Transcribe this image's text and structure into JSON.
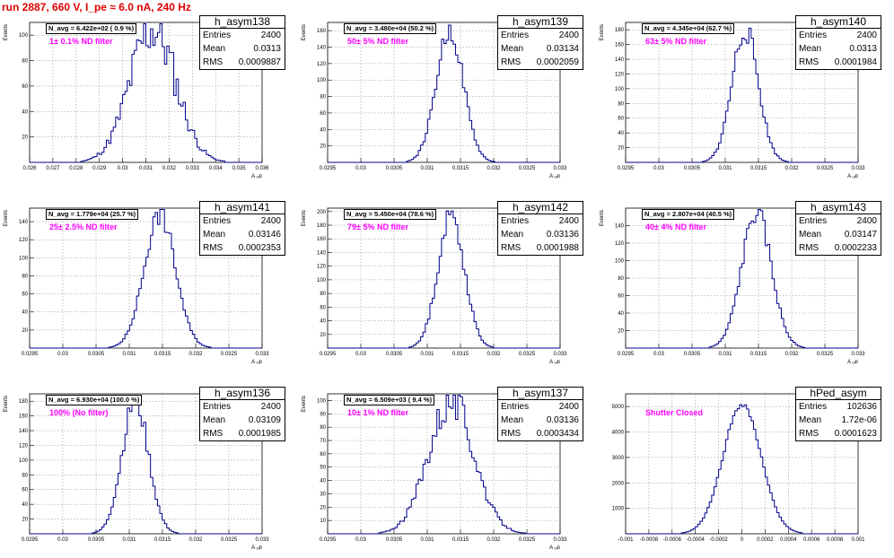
{
  "title": "run 2887,   660 V, I_pe ≈ 6.0 nA, 240 Hz",
  "colors": {
    "histogram": "#00008b",
    "title": "#e00000",
    "annotation": "#ff00ff",
    "grid": "#888888"
  },
  "stats_labels": {
    "entries": "Entries",
    "mean": "Mean",
    "rms": "RMS"
  },
  "chart_data": [
    {
      "type": "histogram",
      "name": "h_asym138",
      "navg": "N_avg = 6.422e+02 ( 0.9 %)",
      "filter": "1± 0.1% ND filter",
      "entries": "2400",
      "mean_text": "0.0313",
      "rms_text": "0.0009887",
      "mean": 0.0313,
      "rms": 0.0009887,
      "peak": 105,
      "xlim": [
        0.026,
        0.036
      ],
      "ylim": [
        0,
        110
      ],
      "xticks": [
        "0.026",
        "0.027",
        "0.028",
        "0.029",
        "0.03",
        "0.031",
        "0.032",
        "0.033",
        "0.034",
        "0.035",
        "0.036"
      ],
      "yticks": [
        "20",
        "40",
        "60",
        "80",
        "100"
      ],
      "ytickvals": [
        20,
        40,
        60,
        80,
        100
      ],
      "xlabel": "A ᵤᵢᴅ",
      "ylabel": "Events",
      "seed": 11,
      "noise": 0.22
    },
    {
      "type": "histogram",
      "name": "h_asym139",
      "navg": "N_avg = 3.480e+04 (50.2 %)",
      "filter": "50± 5% ND filter",
      "entries": "2400",
      "mean_text": "0.03134",
      "rms_text": "0.0002059",
      "mean": 0.03134,
      "rms": 0.0002059,
      "peak": 160,
      "xlim": [
        0.0295,
        0.033
      ],
      "ylim": [
        0,
        170
      ],
      "xticks": [
        "0.0295",
        "0.03",
        "0.0305",
        "0.031",
        "0.0315",
        "0.032",
        "0.0325",
        "0.033"
      ],
      "yticks": [
        "20",
        "40",
        "60",
        "80",
        "100",
        "120",
        "140",
        "160"
      ],
      "ytickvals": [
        20,
        40,
        60,
        80,
        100,
        120,
        140,
        160
      ],
      "xlabel": "A ᵤᵢᴅ",
      "ylabel": "Events",
      "seed": 22,
      "noise": 0.08
    },
    {
      "type": "histogram",
      "name": "h_asym140",
      "navg": "N_avg = 4.345e+04 (62.7 %)",
      "filter": "63± 5% ND filter",
      "entries": "2400",
      "mean_text": "0.0313",
      "rms_text": "0.0001984",
      "mean": 0.0313,
      "rms": 0.0001984,
      "peak": 180,
      "xlim": [
        0.0295,
        0.033
      ],
      "ylim": [
        0,
        190
      ],
      "xticks": [
        "0.0295",
        "0.03",
        "0.0305",
        "0.031",
        "0.0315",
        "0.032",
        "0.0325",
        "0.033"
      ],
      "yticks": [
        "20",
        "40",
        "60",
        "80",
        "100",
        "120",
        "140",
        "160",
        "180"
      ],
      "ytickvals": [
        20,
        40,
        60,
        80,
        100,
        120,
        140,
        160,
        180
      ],
      "xlabel": "A ᵤᵢᴅ",
      "ylabel": "Events",
      "seed": 33,
      "noise": 0.09
    },
    {
      "type": "histogram",
      "name": "h_asym141",
      "navg": "N_avg = 1.779e+04 (25.7 %)",
      "filter": "25± 2.5% ND filter",
      "entries": "2400",
      "mean_text": "0.03146",
      "rms_text": "0.0002353",
      "mean": 0.03146,
      "rms": 0.0002353,
      "peak": 148,
      "xlim": [
        0.0295,
        0.033
      ],
      "ylim": [
        0,
        155
      ],
      "xticks": [
        "0.0295",
        "0.03",
        "0.0305",
        "0.031",
        "0.0315",
        "0.032",
        "0.0325",
        "0.033"
      ],
      "yticks": [
        "20",
        "40",
        "60",
        "80",
        "100",
        "120",
        "140"
      ],
      "ytickvals": [
        20,
        40,
        60,
        80,
        100,
        120,
        140
      ],
      "xlabel": "A ᵤᵢᴅ",
      "ylabel": "Events",
      "seed": 44,
      "noise": 0.08
    },
    {
      "type": "histogram",
      "name": "h_asym142",
      "navg": "N_avg = 5.450e+04 (78.6 %)",
      "filter": "79± 5% ND filter",
      "entries": "2400",
      "mean_text": "0.03136",
      "rms_text": "0.0001988",
      "mean": 0.03136,
      "rms": 0.0001988,
      "peak": 195,
      "xlim": [
        0.0295,
        0.033
      ],
      "ylim": [
        0,
        205
      ],
      "xticks": [
        "0.0295",
        "0.03",
        "0.0305",
        "0.031",
        "0.0315",
        "0.032",
        "0.0325",
        "0.033"
      ],
      "yticks": [
        "20",
        "40",
        "60",
        "80",
        "100",
        "120",
        "140",
        "160",
        "180",
        "200"
      ],
      "ytickvals": [
        20,
        40,
        60,
        80,
        100,
        120,
        140,
        160,
        180,
        200
      ],
      "xlabel": "A ᵤᵢᴅ",
      "ylabel": "Events",
      "seed": 55,
      "noise": 0.08
    },
    {
      "type": "histogram",
      "name": "h_asym143",
      "navg": "N_avg = 2.807e+04 (40.5 %)",
      "filter": "40± 4% ND filter",
      "entries": "2400",
      "mean_text": "0.03147",
      "rms_text": "0.0002233",
      "mean": 0.03147,
      "rms": 0.0002233,
      "peak": 155,
      "xlim": [
        0.0295,
        0.033
      ],
      "ylim": [
        0,
        160
      ],
      "xticks": [
        "0.0295",
        "0.03",
        "0.0305",
        "0.031",
        "0.0315",
        "0.032",
        "0.0325",
        "0.033"
      ],
      "yticks": [
        "20",
        "40",
        "60",
        "80",
        "100",
        "120",
        "140"
      ],
      "ytickvals": [
        20,
        40,
        60,
        80,
        100,
        120,
        140
      ],
      "xlabel": "A ᵤᵢᴅ",
      "ylabel": "Events",
      "seed": 66,
      "noise": 0.08
    },
    {
      "type": "histogram",
      "name": "h_asym136",
      "navg": "N_avg = 6.930e+04 (100.0 %)",
      "filter": "100% (No filter)",
      "entries": "2400",
      "mean_text": "0.03109",
      "rms_text": "0.0001985",
      "mean": 0.03109,
      "rms": 0.0001985,
      "peak": 180,
      "xlim": [
        0.0295,
        0.033
      ],
      "ylim": [
        0,
        190
      ],
      "xticks": [
        "0.0295",
        "0.03",
        "0.0305",
        "0.031",
        "0.0315",
        "0.032",
        "0.0325",
        "0.033"
      ],
      "yticks": [
        "20",
        "40",
        "60",
        "80",
        "100",
        "120",
        "140",
        "160",
        "180"
      ],
      "ytickvals": [
        20,
        40,
        60,
        80,
        100,
        120,
        140,
        160,
        180
      ],
      "xlabel": "A ᵤᵢᴅ",
      "ylabel": "Events",
      "seed": 77,
      "noise": 0.09
    },
    {
      "type": "histogram",
      "name": "h_asym137",
      "navg": "N_avg = 6.509e+03 ( 9.4 %)",
      "filter": "10± 1% ND filter",
      "entries": "2400",
      "mean_text": "0.03136",
      "rms_text": "0.0003434",
      "mean": 0.03136,
      "rms": 0.0003434,
      "peak": 100,
      "xlim": [
        0.0295,
        0.033
      ],
      "ylim": [
        0,
        105
      ],
      "xticks": [
        "0.0295",
        "0.03",
        "0.0305",
        "0.031",
        "0.0315",
        "0.032",
        "0.0325",
        "0.033"
      ],
      "yticks": [
        "10",
        "20",
        "30",
        "40",
        "50",
        "60",
        "70",
        "80",
        "90",
        "100"
      ],
      "ytickvals": [
        10,
        20,
        30,
        40,
        50,
        60,
        70,
        80,
        90,
        100
      ],
      "xlabel": "A ᵤᵢᴅ",
      "ylabel": "Events",
      "seed": 88,
      "noise": 0.15
    },
    {
      "type": "histogram",
      "name": "hPed_asym",
      "navg": "",
      "filter": "Shutter Closed",
      "entries": "102636",
      "mean_text": "1.72e-06",
      "rms_text": "0.0001623",
      "mean": 1.72e-06,
      "rms": 0.0001623,
      "peak": 5100,
      "xlim": [
        -0.001,
        0.001
      ],
      "ylim": [
        0,
        5500
      ],
      "xticks": [
        "-0.001",
        "-0.0008",
        "-0.0006",
        "-0.0004",
        "-0.0002",
        "0",
        "0.0002",
        "0.0004",
        "0.0006",
        "0.0008",
        "0.001"
      ],
      "yticks": [
        "1000",
        "2000",
        "3000",
        "4000",
        "5000"
      ],
      "ytickvals": [
        1000,
        2000,
        3000,
        4000,
        5000
      ],
      "xlabel": "",
      "ylabel": "",
      "seed": 99,
      "noise": 0.02
    }
  ]
}
